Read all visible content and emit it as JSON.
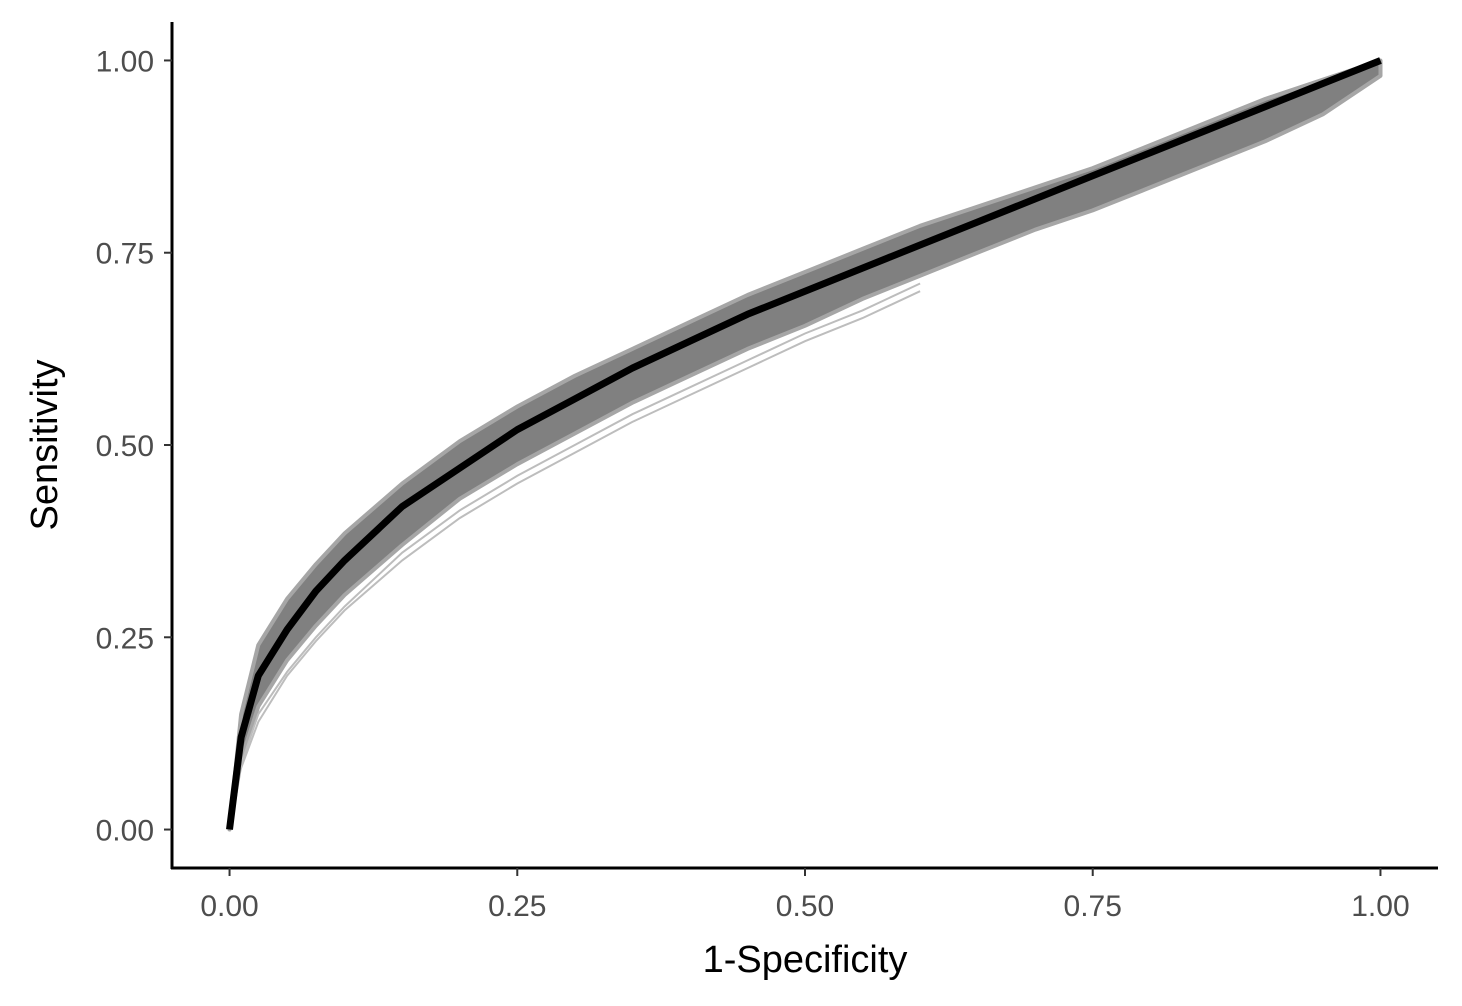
{
  "chart_data": {
    "type": "line",
    "title": "",
    "xlabel": "1-Specificity",
    "ylabel": "Sensitivity",
    "xlim": [
      -0.05,
      1.05
    ],
    "ylim": [
      -0.05,
      1.05
    ],
    "x_ticks": [
      0,
      0.25,
      0.5,
      0.75,
      1
    ],
    "y_ticks": [
      0,
      0.25,
      0.5,
      0.75,
      1
    ],
    "x_tick_labels": [
      "0.00",
      "0.25",
      "0.50",
      "0.75",
      "1.00"
    ],
    "y_tick_labels": [
      "0.00",
      "0.25",
      "0.50",
      "0.75",
      "1.00"
    ],
    "grid": false,
    "legend": "none",
    "colors": {
      "main": "#000000",
      "band": "#808080",
      "bootstrap": "#bdbdbd",
      "axis": "#000000",
      "tick_text": "#4d4d4d"
    },
    "series": [
      {
        "x": [
          0,
          0.01,
          0.025,
          0.05,
          0.075,
          0.1,
          0.15,
          0.2,
          0.25,
          0.3,
          0.35,
          0.4,
          0.45,
          0.5,
          0.55,
          0.6,
          0.65,
          0.7,
          0.75,
          0.8,
          0.85,
          0.9,
          0.95,
          1.0
        ],
        "y": [
          0,
          0.12,
          0.2,
          0.26,
          0.31,
          0.35,
          0.42,
          0.47,
          0.52,
          0.56,
          0.6,
          0.635,
          0.67,
          0.7,
          0.73,
          0.76,
          0.79,
          0.82,
          0.85,
          0.88,
          0.91,
          0.94,
          0.97,
          1.0
        ]
      }
    ],
    "band": {
      "x": [
        0,
        0.01,
        0.025,
        0.05,
        0.075,
        0.1,
        0.15,
        0.2,
        0.25,
        0.3,
        0.35,
        0.4,
        0.45,
        0.5,
        0.55,
        0.6,
        0.65,
        0.7,
        0.75,
        0.8,
        0.85,
        0.9,
        0.95,
        1.0
      ],
      "upper": [
        0,
        0.15,
        0.24,
        0.3,
        0.345,
        0.385,
        0.45,
        0.505,
        0.55,
        0.59,
        0.625,
        0.66,
        0.695,
        0.725,
        0.755,
        0.785,
        0.81,
        0.835,
        0.86,
        0.89,
        0.92,
        0.95,
        0.975,
        1.0
      ],
      "lower": [
        0,
        0.09,
        0.16,
        0.22,
        0.265,
        0.305,
        0.37,
        0.43,
        0.475,
        0.515,
        0.555,
        0.59,
        0.625,
        0.655,
        0.69,
        0.72,
        0.75,
        0.78,
        0.805,
        0.835,
        0.865,
        0.895,
        0.93,
        0.98
      ]
    },
    "outlier_curves": [
      {
        "x": [
          0.01,
          0.025,
          0.05,
          0.075,
          0.1,
          0.15,
          0.2,
          0.25,
          0.3,
          0.35,
          0.4,
          0.45,
          0.5,
          0.55,
          0.6
        ],
        "y": [
          0.08,
          0.14,
          0.2,
          0.245,
          0.285,
          0.35,
          0.405,
          0.45,
          0.49,
          0.53,
          0.565,
          0.6,
          0.635,
          0.665,
          0.7
        ]
      },
      {
        "x": [
          0.01,
          0.025,
          0.05,
          0.075,
          0.1,
          0.15,
          0.2,
          0.25,
          0.3,
          0.35,
          0.4,
          0.45,
          0.5,
          0.55,
          0.6
        ],
        "y": [
          0.085,
          0.15,
          0.205,
          0.25,
          0.29,
          0.36,
          0.415,
          0.46,
          0.5,
          0.54,
          0.575,
          0.61,
          0.645,
          0.675,
          0.71
        ]
      }
    ]
  }
}
